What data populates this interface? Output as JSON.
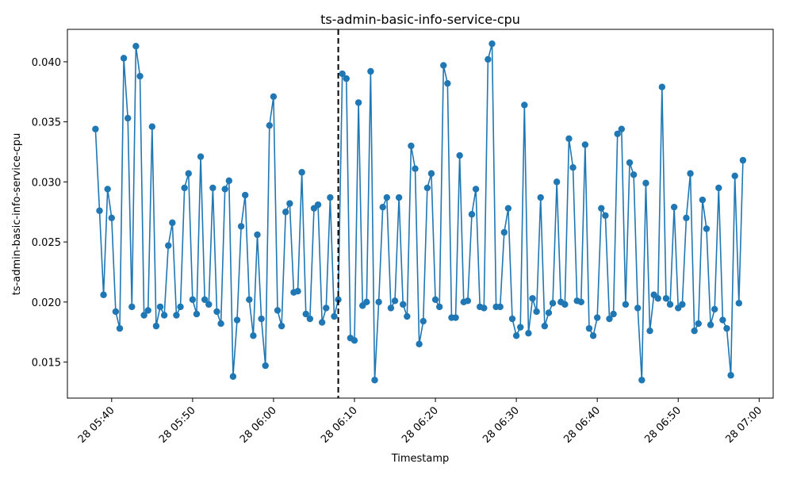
{
  "chart_data": {
    "type": "line",
    "title": "ts-admin-basic-info-service-cpu",
    "xlabel": "Timestamp",
    "ylabel": "ts-admin-basic-info-service-cpu",
    "x_start": "2023-01-28 05:38:00",
    "x_step_minutes": 0.5,
    "xlim": [
      "2023-01-28 05:34:32",
      "2023-01-28 07:01:44"
    ],
    "ylim": [
      0.012,
      0.0427
    ],
    "x_ticks": [
      "28 05:40",
      "28 05:50",
      "28 06:00",
      "28 06:10",
      "28 06:20",
      "28 06:30",
      "28 06:40",
      "28 06:50",
      "28 07:00"
    ],
    "y_ticks": [
      "0.015",
      "0.020",
      "0.025",
      "0.030",
      "0.035",
      "0.040"
    ],
    "vline": {
      "x": "2023-01-28 06:08:00",
      "style": "dashed",
      "color": "#000000"
    },
    "grid": false,
    "series": [
      {
        "color": "#1f77b4",
        "values": [
          0.0344,
          0.0276,
          0.0206,
          0.0294,
          0.027,
          0.0192,
          0.0178,
          0.0403,
          0.0353,
          0.0196,
          0.0413,
          0.0388,
          0.0189,
          0.0193,
          0.0346,
          0.018,
          0.0196,
          0.0189,
          0.0247,
          0.0266,
          0.0189,
          0.0196,
          0.0295,
          0.0307,
          0.0202,
          0.019,
          0.0321,
          0.0202,
          0.0198,
          0.0295,
          0.0192,
          0.0182,
          0.0294,
          0.0301,
          0.0138,
          0.0185,
          0.0263,
          0.0289,
          0.0202,
          0.0172,
          0.0256,
          0.0186,
          0.0147,
          0.0347,
          0.0371,
          0.0193,
          0.018,
          0.0275,
          0.0282,
          0.0208,
          0.0209,
          0.0308,
          0.019,
          0.0186,
          0.0278,
          0.0281,
          0.0183,
          0.0195,
          0.0287,
          0.0188,
          0.0202,
          0.039,
          0.0386,
          0.017,
          0.0168,
          0.0366,
          0.0197,
          0.02,
          0.0392,
          0.0135,
          0.02,
          0.0279,
          0.0287,
          0.0195,
          0.0201,
          0.0287,
          0.0198,
          0.0188,
          0.033,
          0.0311,
          0.0165,
          0.0184,
          0.0295,
          0.0307,
          0.0202,
          0.0196,
          0.0397,
          0.0382,
          0.0187,
          0.0187,
          0.0322,
          0.02,
          0.0201,
          0.0273,
          0.0294,
          0.0196,
          0.0195,
          0.0402,
          0.0415,
          0.0196,
          0.0196,
          0.0258,
          0.0278,
          0.0186,
          0.0172,
          0.0179,
          0.0364,
          0.0174,
          0.0203,
          0.0192,
          0.0287,
          0.018,
          0.0191,
          0.0199,
          0.03,
          0.02,
          0.0198,
          0.0336,
          0.0312,
          0.0201,
          0.02,
          0.0331,
          0.0178,
          0.0172,
          0.0187,
          0.0278,
          0.0272,
          0.0186,
          0.019,
          0.034,
          0.0344,
          0.0198,
          0.0316,
          0.0306,
          0.0195,
          0.0135,
          0.0299,
          0.0176,
          0.0206,
          0.0203,
          0.0379,
          0.0203,
          0.0198,
          0.0279,
          0.0195,
          0.0198,
          0.027,
          0.0307,
          0.0176,
          0.0182,
          0.0285,
          0.0261,
          0.0181,
          0.0194,
          0.0295,
          0.0185,
          0.0178,
          0.0139,
          0.0305,
          0.0199,
          0.0318
        ]
      }
    ]
  }
}
